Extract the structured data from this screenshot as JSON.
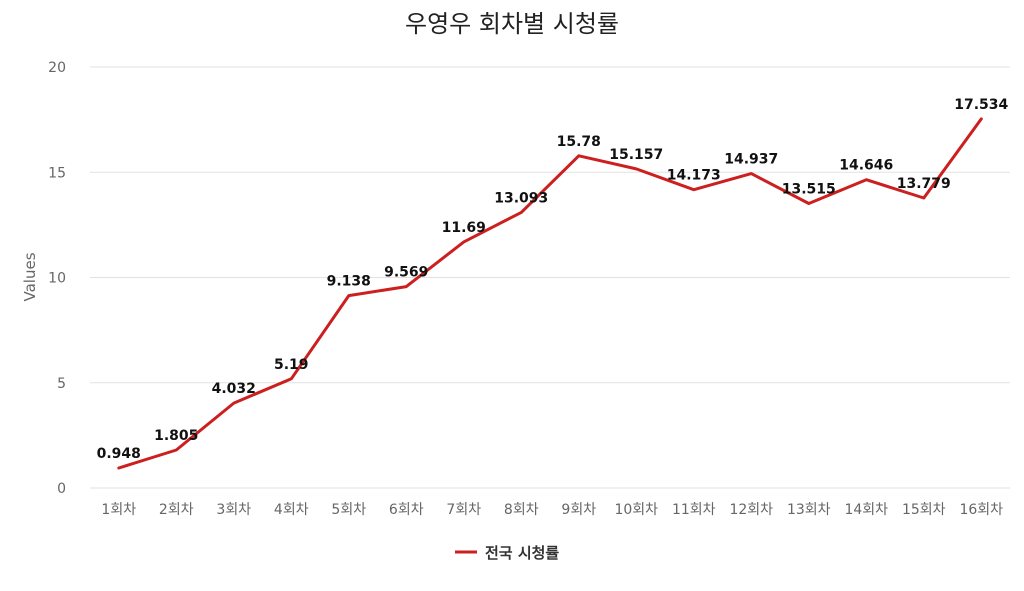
{
  "chart_data": {
    "type": "line",
    "title": "우영우 회차별 시청률",
    "ylabel": "Values",
    "xlabel": "",
    "ylim": [
      0,
      20
    ],
    "yticks": [
      0,
      5,
      10,
      15,
      20
    ],
    "grid": true,
    "legend_position": "bottom",
    "categories": [
      "1회차",
      "2회차",
      "3회차",
      "4회차",
      "5회차",
      "6회차",
      "7회차",
      "8회차",
      "9회차",
      "10회차",
      "11회차",
      "12회차",
      "13회차",
      "14회차",
      "15회차",
      "16회차"
    ],
    "series": [
      {
        "name": "전국 시청률",
        "color": "#cc1f1f",
        "values": [
          0.948,
          1.805,
          4.032,
          5.19,
          9.138,
          9.569,
          11.69,
          13.093,
          15.78,
          15.157,
          14.173,
          14.937,
          13.515,
          14.646,
          13.779,
          17.534
        ]
      }
    ]
  }
}
